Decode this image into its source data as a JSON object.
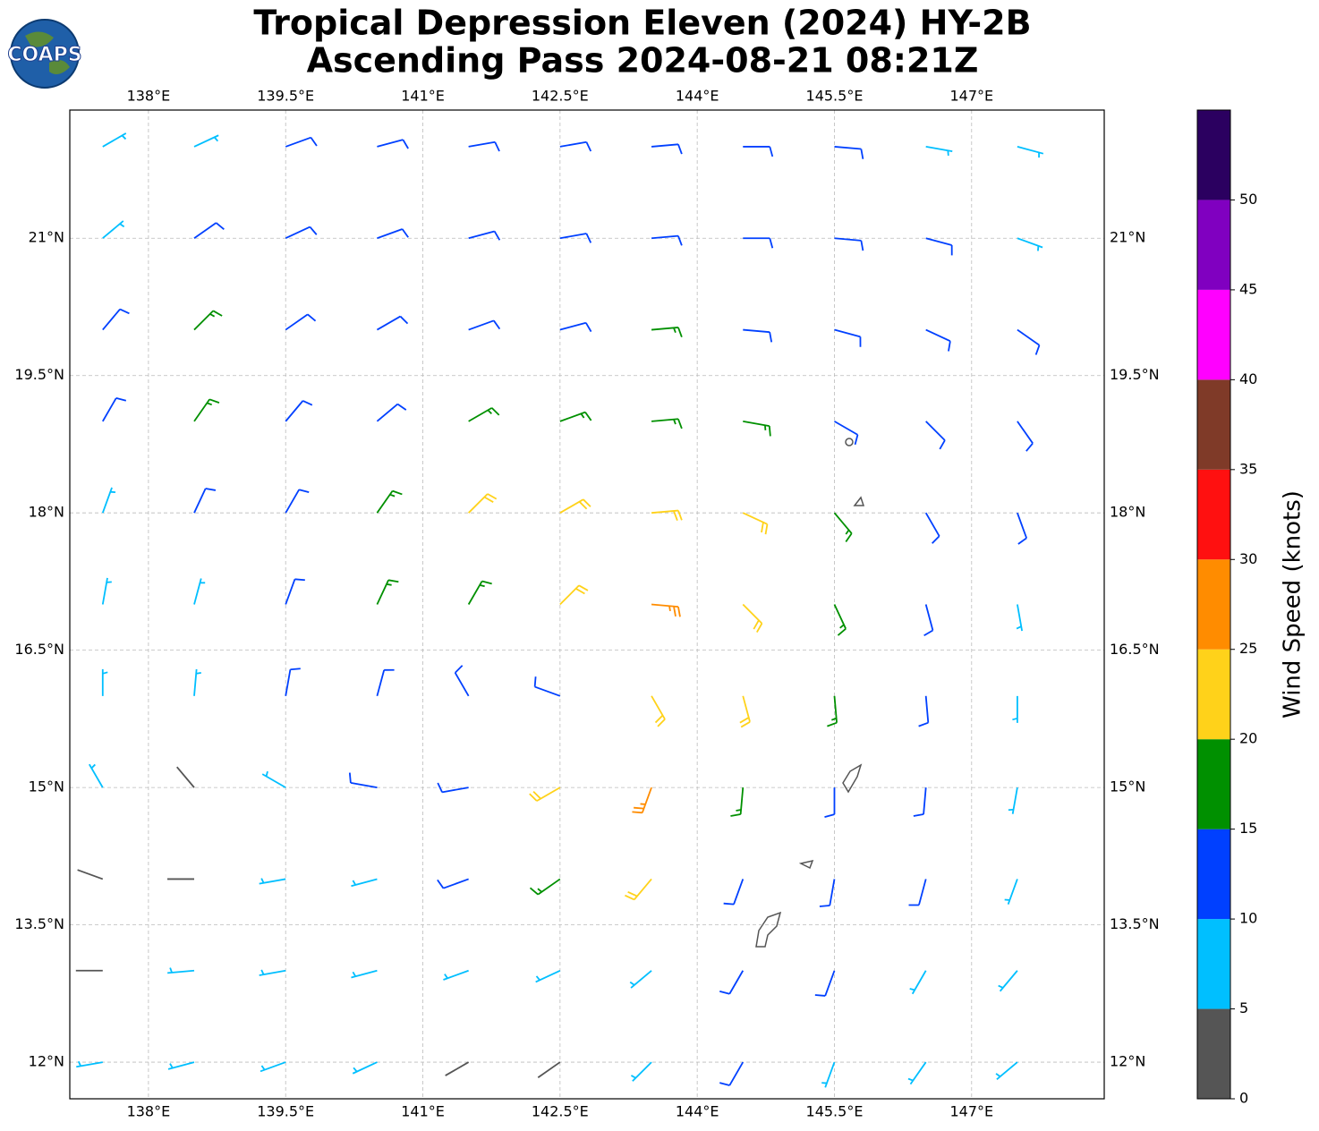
{
  "chart_data": {
    "type": "barbs",
    "title": [
      "Tropical Depression Eleven (2024) HY-2B",
      "Ascending Pass 2024-08-21 08:21Z"
    ],
    "logo_text": "COAPS",
    "xlim": [
      137.14,
      148.45
    ],
    "ylim": [
      11.6,
      22.4
    ],
    "xticks": [
      {
        "value": 138,
        "label": "138°E"
      },
      {
        "value": 139.5,
        "label": "139.5°E"
      },
      {
        "value": 141,
        "label": "141°E"
      },
      {
        "value": 142.5,
        "label": "142.5°E"
      },
      {
        "value": 144,
        "label": "144°E"
      },
      {
        "value": 145.5,
        "label": "145.5°E"
      },
      {
        "value": 147,
        "label": "147°E"
      }
    ],
    "yticks": [
      {
        "value": 12,
        "label": "12°N"
      },
      {
        "value": 13.5,
        "label": "13.5°N"
      },
      {
        "value": 15,
        "label": "15°N"
      },
      {
        "value": 16.5,
        "label": "16.5°N"
      },
      {
        "value": 18,
        "label": "18°N"
      },
      {
        "value": 19.5,
        "label": "19.5°N"
      },
      {
        "value": 21,
        "label": "21°N"
      }
    ],
    "grid": true,
    "barbs": {
      "lon": [
        137.5,
        138.5,
        139.5,
        140.5,
        141.5,
        142.5,
        143.5,
        144.5,
        145.5,
        146.5,
        147.5
      ],
      "lat": [
        22,
        21,
        20,
        19,
        18,
        17,
        16,
        15,
        14,
        13,
        12
      ],
      "speed": [
        [
          8,
          9,
          10,
          11,
          12,
          12,
          12,
          11,
          10,
          9,
          8
        ],
        [
          9,
          11,
          12,
          12,
          13,
          13,
          12,
          12,
          11,
          10,
          9
        ],
        [
          10,
          15,
          13,
          13,
          14,
          14,
          15,
          13,
          12,
          12,
          11
        ],
        [
          10,
          16,
          12,
          14,
          17,
          18,
          18,
          17,
          14,
          12,
          11
        ],
        [
          9,
          11,
          13,
          16,
          20,
          22,
          24,
          22,
          18,
          13,
          10
        ],
        [
          7,
          9,
          11,
          15,
          18,
          23,
          27,
          24,
          19,
          14,
          9
        ],
        [
          6,
          8,
          10,
          12,
          12,
          10,
          24,
          22,
          17,
          13,
          9
        ],
        [
          5,
          4,
          8,
          11,
          14,
          22,
          26,
          19,
          12,
          14,
          8
        ],
        [
          4,
          4,
          5,
          9,
          12,
          16,
          20,
          11,
          12,
          10,
          5
        ],
        [
          4,
          5,
          7,
          8,
          9,
          8,
          9,
          10,
          11,
          6,
          6
        ],
        [
          7,
          8,
          7,
          8,
          4,
          3,
          9,
          12,
          8,
          7,
          6
        ]
      ],
      "direction": [
        [
          60,
          65,
          70,
          75,
          80,
          80,
          85,
          90,
          95,
          100,
          105
        ],
        [
          50,
          55,
          65,
          70,
          75,
          80,
          85,
          90,
          95,
          105,
          110
        ],
        [
          40,
          45,
          55,
          60,
          70,
          75,
          85,
          95,
          105,
          115,
          125
        ],
        [
          30,
          35,
          40,
          50,
          60,
          70,
          85,
          100,
          120,
          135,
          145
        ],
        [
          20,
          25,
          30,
          35,
          45,
          60,
          85,
          115,
          140,
          150,
          160
        ],
        [
          10,
          15,
          20,
          25,
          30,
          45,
          95,
          135,
          155,
          165,
          170
        ],
        [
          360,
          5,
          10,
          15,
          330,
          290,
          150,
          165,
          175,
          175,
          180
        ],
        [
          330,
          320,
          300,
          280,
          260,
          240,
          200,
          185,
          180,
          185,
          190
        ],
        [
          290,
          270,
          260,
          255,
          250,
          235,
          220,
          200,
          190,
          195,
          200
        ],
        [
          270,
          265,
          260,
          255,
          250,
          245,
          230,
          210,
          200,
          210,
          220
        ],
        [
          260,
          255,
          250,
          245,
          240,
          235,
          225,
          210,
          200,
          215,
          230
        ]
      ]
    },
    "colorbar": {
      "label": "Wind Speed (knots)",
      "bounds": [
        0,
        5,
        10,
        15,
        20,
        25,
        30,
        35,
        40,
        45,
        50,
        55
      ],
      "colors": [
        "#555555",
        "#00bfff",
        "#0040ff",
        "#009000",
        "#ffd21a",
        "#ff8c00",
        "#ff1010",
        "#7f3a28",
        "#ff00ff",
        "#8000c0",
        "#2b0060"
      ],
      "ticks": [
        0,
        5,
        10,
        15,
        20,
        25,
        30,
        35,
        40,
        45,
        50
      ]
    }
  }
}
